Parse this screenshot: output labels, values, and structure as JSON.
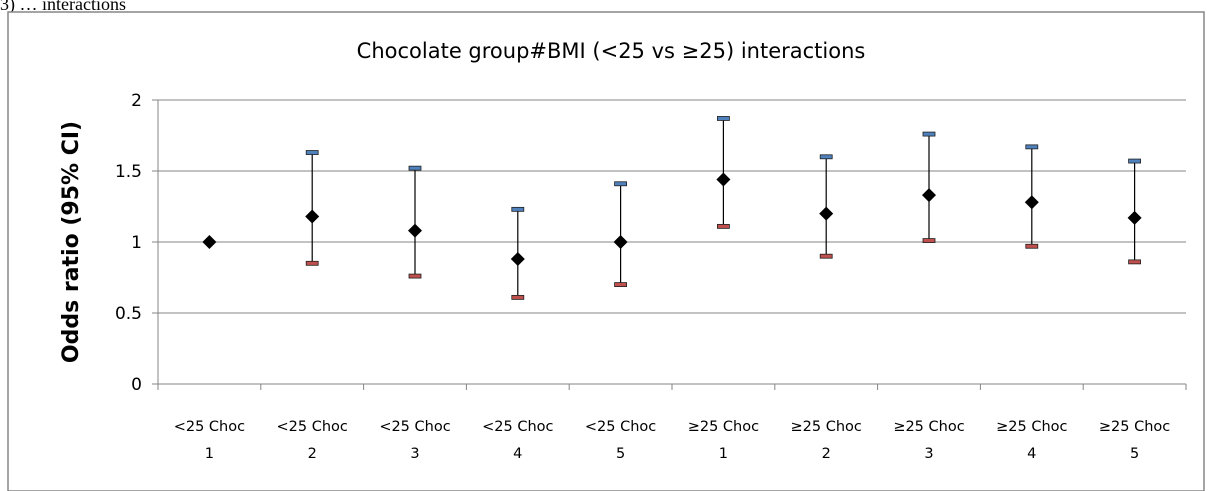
{
  "top_fragment": "3) … interactions",
  "chart_data": {
    "type": "scatter",
    "title": "Chocolate group#BMI (<25 vs ≥25) interactions",
    "xlabel": "",
    "ylabel": "Odds ratio (95% CI)",
    "ylim": [
      0,
      2
    ],
    "y_ticks": [
      "0",
      "0.5",
      "1",
      "1.5",
      "2"
    ],
    "grid": true,
    "categories": [
      [
        "<25 Choc",
        "1"
      ],
      [
        "<25 Choc",
        "2"
      ],
      [
        "<25 Choc",
        "3"
      ],
      [
        "<25 Choc",
        "4"
      ],
      [
        "<25 Choc",
        "5"
      ],
      [
        "≥25 Choc",
        "1"
      ],
      [
        "≥25 Choc",
        "2"
      ],
      [
        "≥25 Choc",
        "3"
      ],
      [
        "≥25 Choc",
        "4"
      ],
      [
        "≥25 Choc",
        "5"
      ]
    ],
    "series": [
      {
        "point": [
          1.0,
          1.18,
          1.08,
          0.88,
          1.0,
          1.44,
          1.2,
          1.33,
          1.28,
          1.17
        ],
        "lower": [
          1.0,
          0.85,
          0.76,
          0.61,
          0.7,
          1.11,
          0.9,
          1.01,
          0.97,
          0.86
        ],
        "upper": [
          1.0,
          1.63,
          1.52,
          1.23,
          1.41,
          1.87,
          1.6,
          1.76,
          1.67,
          1.57
        ]
      }
    ],
    "colors": {
      "point": "#000000",
      "upper_cap": "#4f81bd",
      "lower_cap": "#c0504d",
      "whisker": "#000000",
      "grid": "#868686",
      "frame": "#868686"
    }
  }
}
